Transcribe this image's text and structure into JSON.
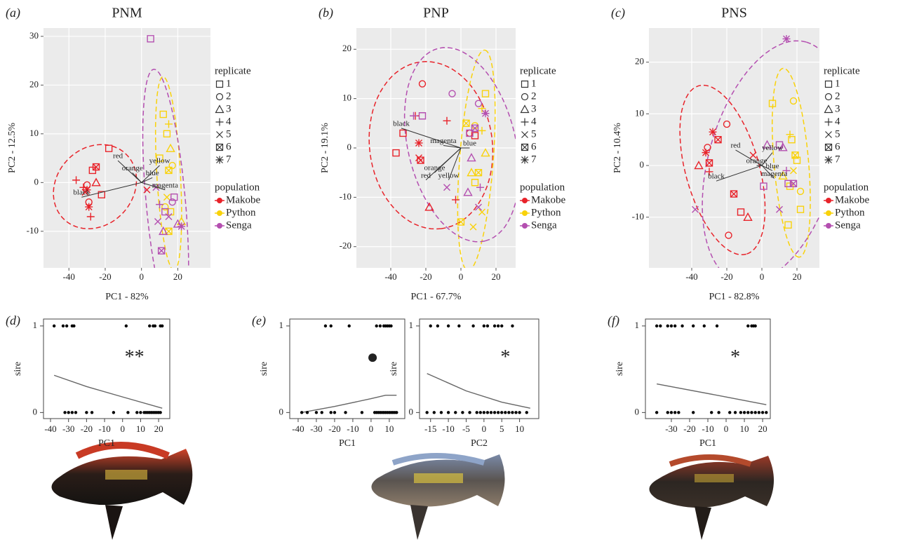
{
  "chart_data": [
    {
      "type": "scatter",
      "panel_label": "(a)",
      "title": "PNM",
      "x_label": "PC1 - 82%",
      "y_label": "PC2 - 12.5%",
      "xlim": [
        -54,
        38
      ],
      "ylim": [
        -17.5,
        31.7
      ],
      "xticks": [
        -40,
        -20,
        0,
        20
      ],
      "yticks": [
        -10,
        0,
        10,
        20,
        30
      ],
      "grid": true,
      "legend": {
        "replicate_title": "replicate",
        "replicates": [
          1,
          2,
          3,
          4,
          5,
          6,
          7
        ],
        "population_title": "population"
      },
      "loadings": [
        {
          "name": "red",
          "x": -13,
          "y": 4.5
        },
        {
          "name": "orange",
          "x": -5,
          "y": 2
        },
        {
          "name": "yellow",
          "x": 10,
          "y": 3.5
        },
        {
          "name": "blue",
          "x": 6,
          "y": 1
        },
        {
          "name": "magenta",
          "x": 13,
          "y": -1.5
        },
        {
          "name": "black",
          "x": -33,
          "y": -3
        }
      ],
      "series": [
        {
          "name": "Makobe",
          "color": "#e8232a",
          "x": [
            -36,
            -32,
            -30,
            -29,
            -28,
            -31,
            -27,
            -25,
            -25,
            -22,
            -18,
            -30,
            3,
            -29
          ],
          "values": [
            0.5,
            -1,
            -0.5,
            -4,
            -7,
            -2,
            2.5,
            3.2,
            0,
            -2.5,
            7,
            -1.5,
            -1.5,
            -5
          ],
          "replicate": [
            4,
            4,
            2,
            2,
            4,
            5,
            1,
            6,
            3,
            1,
            1,
            7,
            5,
            7
          ]
        },
        {
          "name": "Python",
          "color": "#f9d20a",
          "x": [
            12,
            15,
            14,
            16,
            17,
            15,
            16,
            15,
            22,
            14,
            13,
            10
          ],
          "values": [
            14,
            12,
            10,
            7,
            3.5,
            2.5,
            -6,
            -10,
            -8,
            -3,
            -5,
            5
          ],
          "replicate": [
            1,
            4,
            1,
            3,
            2,
            6,
            1,
            6,
            3,
            5,
            2,
            1
          ]
        },
        {
          "name": "Senga",
          "color": "#b44fb0",
          "x": [
            5,
            11,
            8,
            10,
            13,
            17,
            18,
            22,
            20,
            9,
            12,
            15
          ],
          "values": [
            29.5,
            -14,
            -1,
            -4.5,
            -6,
            -4,
            -3,
            -9,
            -8.5,
            -8,
            -10,
            -7
          ],
          "replicate": [
            1,
            6,
            5,
            4,
            1,
            2,
            1,
            7,
            3,
            5,
            3,
            5
          ]
        }
      ]
    },
    {
      "type": "scatter",
      "panel_label": "(b)",
      "title": "PNP",
      "x_label": "PC1 - 67.7%",
      "y_label": "PC2 - 19.1%",
      "xlim": [
        -59.6,
        31.2
      ],
      "ylim": [
        -24.3,
        24.3
      ],
      "xticks": [
        -40,
        -20,
        0,
        20
      ],
      "yticks": [
        -20,
        -10,
        0,
        10,
        20
      ],
      "grid": true,
      "legend": {
        "replicate_title": "replicate",
        "replicates": [
          1,
          2,
          3,
          4,
          5,
          6,
          7
        ],
        "population_title": "population"
      },
      "loadings": [
        {
          "name": "black",
          "x": -34,
          "y": 4
        },
        {
          "name": "magenta",
          "x": -10,
          "y": 0.5
        },
        {
          "name": "blue",
          "x": 5,
          "y": 0
        },
        {
          "name": "orange",
          "x": -15,
          "y": -5
        },
        {
          "name": "red",
          "x": -20,
          "y": -6.5
        },
        {
          "name": "yellow",
          "x": -7,
          "y": -6.5
        }
      ],
      "series": [
        {
          "name": "Makobe",
          "color": "#e8232a",
          "x": [
            -37,
            -33,
            -24,
            -23,
            -24,
            -18,
            -22,
            -26,
            -8,
            -3,
            5,
            8
          ],
          "values": [
            -1,
            3,
            1,
            -2.5,
            -2,
            -12,
            13,
            6.5,
            5.5,
            -10.5,
            3,
            2.5
          ],
          "replicate": [
            1,
            1,
            7,
            6,
            5,
            3,
            2,
            4,
            4,
            4,
            2,
            1
          ]
        },
        {
          "name": "Python",
          "color": "#f9d20a",
          "x": [
            3,
            8,
            12,
            14,
            12,
            10,
            8,
            6,
            12,
            0,
            7,
            14
          ],
          "values": [
            5,
            4.5,
            3.5,
            11,
            8,
            -5,
            -7,
            -5,
            -13,
            -15,
            -16,
            -1
          ],
          "replicate": [
            6,
            2,
            4,
            1,
            4,
            6,
            1,
            3,
            5,
            6,
            5,
            3
          ]
        },
        {
          "name": "Senga",
          "color": "#b44fb0",
          "x": [
            -22,
            -27,
            -8,
            -5,
            6,
            10,
            11,
            14,
            5,
            10,
            4,
            8
          ],
          "values": [
            6.5,
            6.5,
            -8,
            11,
            -2,
            -12,
            -8,
            7,
            3,
            9,
            -9,
            4
          ],
          "replicate": [
            1,
            4,
            5,
            2,
            3,
            5,
            4,
            7,
            1,
            2,
            3,
            6
          ]
        }
      ]
    },
    {
      "type": "scatter",
      "panel_label": "(c)",
      "title": "PNS",
      "x_label": "PC1 - 82.8%",
      "y_label": "PC2 - 10.4%",
      "xlim": [
        -64.4,
        32.8
      ],
      "ylim": [
        -19.8,
        26.6
      ],
      "xticks": [
        -40,
        -20,
        0,
        20
      ],
      "yticks": [
        -10,
        0,
        10,
        20
      ],
      "grid": true,
      "legend": {
        "replicate_title": "replicate",
        "replicates": [
          1,
          2,
          3,
          4,
          5,
          6,
          7
        ],
        "population_title": "population"
      },
      "loadings": [
        {
          "name": "red",
          "x": -15,
          "y": 3
        },
        {
          "name": "yellow",
          "x": 6,
          "y": 2.5
        },
        {
          "name": "orange",
          "x": -3,
          "y": 0
        },
        {
          "name": "blue",
          "x": 6,
          "y": -1
        },
        {
          "name": "magenta",
          "x": 7,
          "y": -2.5
        },
        {
          "name": "black",
          "x": -26,
          "y": -3
        }
      ],
      "series": [
        {
          "name": "Makobe",
          "color": "#e8232a",
          "x": [
            -28,
            -25,
            -32,
            -31,
            -20,
            -30,
            -36,
            -30,
            -16,
            -19,
            -5,
            -8,
            -12
          ],
          "values": [
            6.5,
            5,
            2.5,
            3.5,
            8,
            0.5,
            0,
            -1.2,
            -5.5,
            -13.5,
            2,
            -10,
            -9
          ],
          "replicate": [
            7,
            6,
            7,
            2,
            2,
            6,
            3,
            4,
            6,
            2,
            5,
            3,
            1
          ]
        },
        {
          "name": "Python",
          "color": "#f9d20a",
          "x": [
            16,
            17,
            18,
            20,
            18,
            22,
            22,
            15,
            6,
            16,
            12,
            19
          ],
          "values": [
            6,
            5,
            12.5,
            1,
            -1,
            -5,
            -8.5,
            -11.5,
            12,
            -4,
            -2,
            2
          ],
          "replicate": [
            4,
            1,
            2,
            1,
            5,
            2,
            1,
            1,
            1,
            1,
            3,
            6
          ]
        },
        {
          "name": "Senga",
          "color": "#b44fb0",
          "x": [
            -38,
            14,
            10,
            12,
            14,
            18,
            10,
            3,
            15,
            1
          ],
          "values": [
            -8.5,
            24.5,
            4,
            3.5,
            -1,
            -3.5,
            -8.5,
            4,
            -3.5,
            -4
          ],
          "replicate": [
            5,
            7,
            1,
            3,
            4,
            6,
            5,
            3,
            1,
            1
          ]
        }
      ]
    },
    {
      "type": "logistic",
      "panel_label": "(d)",
      "x_label": "PC1",
      "y_label": "sire",
      "annotation": "**",
      "xlim": [
        -43.9,
        26.2
      ],
      "ylim": [
        -0.07,
        1.08
      ],
      "xticks": [
        -40,
        -30,
        -20,
        -10,
        0,
        10,
        20
      ],
      "yticks": [
        0,
        1
      ],
      "point_color": "#000000",
      "x": [
        -38,
        -33,
        -31,
        -28,
        -27,
        2,
        15,
        17,
        18,
        21,
        22,
        -32,
        -30,
        -28,
        -26,
        -20,
        -17,
        -5,
        3,
        8,
        10,
        12,
        13,
        14,
        15,
        16,
        17,
        18,
        19,
        20,
        21
      ],
      "values": [
        1,
        1,
        1,
        1,
        1,
        1,
        1,
        1,
        1,
        1,
        1,
        0,
        0,
        0,
        0,
        0,
        0,
        0,
        0,
        0,
        0,
        0,
        0,
        0,
        0,
        0,
        0,
        0,
        0,
        0,
        0
      ],
      "curve": {
        "color": "#666666",
        "x": [
          -38,
          -20,
          0,
          22
        ],
        "values": [
          0.43,
          0.3,
          0.18,
          0.05
        ]
      }
    },
    {
      "type": "logistic",
      "panel_label": "(e)",
      "x_label": "PC1",
      "y_label": "sire",
      "annotation": "●",
      "xlim": [
        -44.6,
        18.5
      ],
      "ylim": [
        -0.07,
        1.08
      ],
      "xticks": [
        -40,
        -30,
        -20,
        -10,
        0,
        10
      ],
      "yticks": [
        0,
        1
      ],
      "point_color": "#000000",
      "x": [
        -25,
        -22,
        -12,
        3,
        5,
        7,
        8,
        9,
        10,
        11,
        -38,
        -35,
        -30,
        -27,
        -22,
        -20,
        -14,
        -5,
        2,
        3,
        4,
        5,
        6,
        7,
        8,
        9,
        10,
        11,
        12,
        13,
        14
      ],
      "values": [
        1,
        1,
        1,
        1,
        1,
        1,
        1,
        1,
        1,
        1,
        0,
        0,
        0,
        0,
        0,
        0,
        0,
        0,
        0,
        0,
        0,
        0,
        0,
        0,
        0,
        0,
        0,
        0,
        0,
        0,
        0
      ],
      "curve": {
        "color": "#666666",
        "x": [
          -38,
          -20,
          0,
          8,
          14
        ],
        "values": [
          0,
          0.07,
          0.16,
          0.2,
          0.2
        ]
      }
    },
    {
      "type": "logistic",
      "x_label": "PC2",
      "y_label": "sire",
      "annotation": "*",
      "xlim": [
        -18.1,
        15.4
      ],
      "ylim": [
        -0.07,
        1.08
      ],
      "xticks": [
        -15,
        -10,
        -5,
        0,
        5,
        10
      ],
      "yticks": [
        0,
        1
      ],
      "point_color": "#000000",
      "x": [
        -15,
        -13,
        -10,
        -7,
        -3,
        0,
        1,
        3,
        4,
        5,
        8,
        -16,
        -14,
        -12,
        -10,
        -8,
        -6,
        -4,
        -2,
        -1,
        0,
        1,
        2,
        3,
        4,
        5,
        6,
        7,
        8,
        9,
        10,
        12
      ],
      "values": [
        1,
        1,
        1,
        1,
        1,
        1,
        1,
        1,
        1,
        1,
        1,
        0,
        0,
        0,
        0,
        0,
        0,
        0,
        0,
        0,
        0,
        0,
        0,
        0,
        0,
        0,
        0,
        0,
        0,
        0,
        0,
        0
      ],
      "curve": {
        "color": "#666666",
        "x": [
          -16,
          -5,
          5,
          13
        ],
        "values": [
          0.45,
          0.25,
          0.12,
          0.05
        ]
      }
    },
    {
      "type": "logistic",
      "panel_label": "(f)",
      "x_label": "PC1",
      "y_label": "sire",
      "annotation": "*",
      "xlim": [
        -44.2,
        24.2
      ],
      "ylim": [
        -0.07,
        1.08
      ],
      "xticks": [
        -30,
        -20,
        -10,
        0,
        10,
        20
      ],
      "yticks": [
        0,
        1
      ],
      "point_color": "#000000",
      "x": [
        -38,
        -36,
        -32,
        -30,
        -28,
        -24,
        -18,
        -12,
        -5,
        12,
        14,
        15,
        16,
        -38,
        -32,
        -30,
        -28,
        -26,
        -18,
        -8,
        -4,
        2,
        5,
        8,
        10,
        12,
        14,
        16,
        18,
        20,
        22
      ],
      "values": [
        1,
        1,
        1,
        1,
        1,
        1,
        1,
        1,
        1,
        1,
        1,
        1,
        1,
        0,
        0,
        0,
        0,
        0,
        0,
        0,
        0,
        0,
        0,
        0,
        0,
        0,
        0,
        0,
        0,
        0,
        0
      ],
      "curve": {
        "color": "#666666",
        "x": [
          -38,
          0,
          22
        ],
        "values": [
          0.33,
          0.18,
          0.09
        ]
      }
    }
  ]
}
